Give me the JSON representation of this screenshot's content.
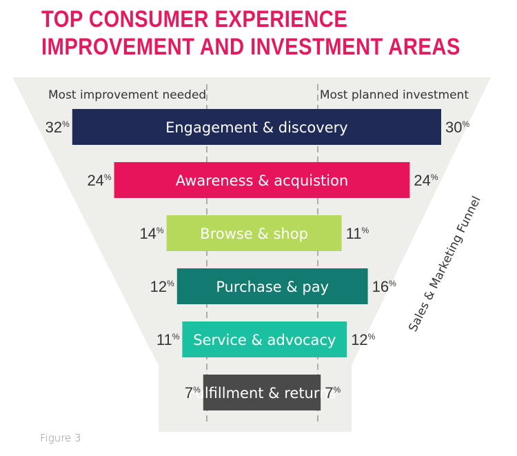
{
  "title": {
    "line1": "TOP CONSUMER EXPERIENCE",
    "line2": "IMPROVEMENT AND INVESTMENT AREAS"
  },
  "footer": "Figure 3",
  "colors": {
    "title": "#e31b5c",
    "funnel": "#eeeeea",
    "text": "#333333"
  },
  "chart_data": {
    "type": "bar",
    "title": "TOP CONSUMER EXPERIENCE IMPROVEMENT AND INVESTMENT AREAS",
    "left_label": "Most improvement needed",
    "right_label": "Most planned investment",
    "side_label": "Sales & Marketing Funnel",
    "unit": "%",
    "categories": [
      "Engagement & discovery",
      "Awareness & acquistion",
      "Browse & shop",
      "Purchase & pay",
      "Service & advocacy",
      "Fulfillment & returns"
    ],
    "series": [
      {
        "name": "Most improvement needed",
        "values": [
          32,
          24,
          14,
          12,
          11,
          7
        ]
      },
      {
        "name": "Most planned investment",
        "values": [
          30,
          24,
          11,
          16,
          12,
          7
        ]
      }
    ],
    "bar_colors": [
      "#1f2a56",
      "#e8145b",
      "#b5d95a",
      "#127a6e",
      "#1bc0a0",
      "#4a4a4a"
    ]
  }
}
